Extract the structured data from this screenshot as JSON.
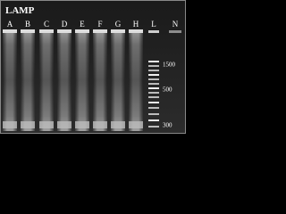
{
  "title": "LAMP",
  "lanes": [
    "A",
    "B",
    "C",
    "D",
    "E",
    "F",
    "G",
    "H",
    "L",
    "N"
  ],
  "ladder_labels": [
    1500,
    500,
    300
  ]
}
